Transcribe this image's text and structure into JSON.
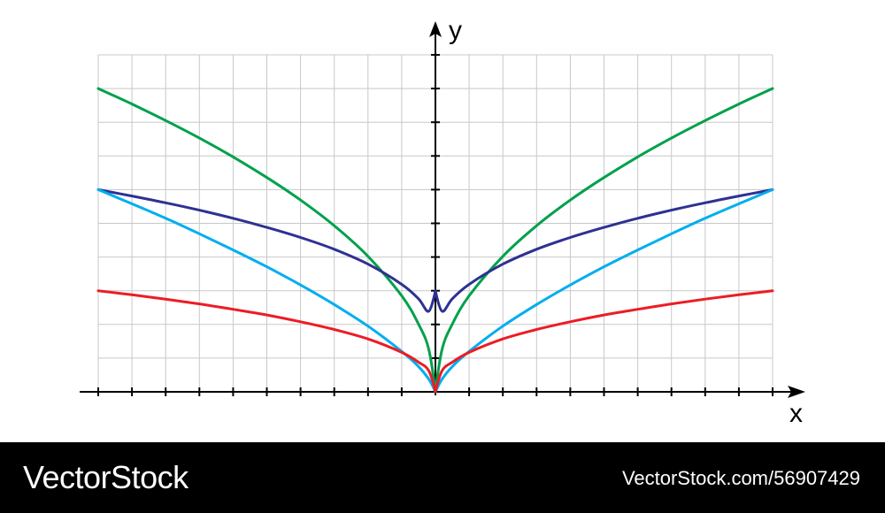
{
  "chart_data": {
    "type": "line",
    "title": "",
    "xlabel": "x",
    "ylabel": "y",
    "xlim": [
      -10,
      10
    ],
    "ylim": [
      0,
      10
    ],
    "grid": true,
    "grid_step": 1,
    "series": [
      {
        "color": "#00a14b",
        "x": [
          -10,
          -9,
          -8,
          -7,
          -6,
          -5,
          -4,
          -3,
          -2,
          -1,
          -0.5,
          -0.2,
          0,
          0.2,
          0.5,
          1,
          2,
          3,
          4,
          5,
          6,
          7,
          8,
          9,
          10
        ],
        "y": [
          9,
          8.54,
          8.05,
          7.53,
          6.97,
          6.36,
          5.69,
          4.93,
          4.02,
          2.85,
          2.01,
          1.27,
          0,
          1.27,
          2.01,
          2.85,
          4.02,
          4.93,
          5.69,
          6.36,
          6.97,
          7.53,
          8.05,
          8.54,
          9
        ]
      },
      {
        "color": "#2e3192",
        "x": [
          -10,
          -9,
          -8,
          -7,
          -6,
          -5,
          -4,
          -3,
          -2,
          -1,
          -0.5,
          -0.2,
          0,
          0.2,
          0.5,
          1,
          2,
          3,
          4,
          5,
          6,
          7,
          8,
          9,
          10
        ],
        "y": [
          6,
          5.81,
          5.61,
          5.39,
          5.15,
          4.88,
          4.58,
          4.23,
          3.79,
          3.19,
          2.76,
          2.39,
          3,
          2.39,
          2.76,
          3.19,
          3.79,
          4.23,
          4.58,
          4.88,
          5.15,
          5.39,
          5.61,
          5.81,
          6
        ]
      },
      {
        "color": "#00aeef",
        "x": [
          -10,
          -9,
          -8,
          -7,
          -6,
          -5,
          -4,
          -3,
          -2,
          -1,
          -0.5,
          -0.2,
          0,
          0.2,
          0.5,
          1,
          2,
          3,
          4,
          5,
          6,
          7,
          8,
          9,
          10
        ],
        "y": [
          6,
          5.58,
          5.15,
          4.69,
          4.21,
          3.71,
          3.17,
          2.59,
          1.95,
          1.2,
          0.75,
          0.38,
          0,
          0.38,
          0.75,
          1.2,
          1.95,
          2.59,
          3.17,
          3.71,
          4.21,
          4.69,
          5.15,
          5.58,
          6
        ]
      },
      {
        "color": "#ed1c24",
        "x": [
          -10,
          -9,
          -8,
          -7,
          -6,
          -5,
          -4,
          -3,
          -2,
          -1,
          -0.5,
          -0.2,
          0,
          0.2,
          0.5,
          1,
          2,
          3,
          4,
          5,
          6,
          7,
          8,
          9,
          10
        ],
        "y": [
          3,
          2.88,
          2.75,
          2.61,
          2.45,
          2.28,
          2.08,
          1.85,
          1.57,
          1.17,
          0.88,
          0.63,
          0,
          0.63,
          0.88,
          1.17,
          1.57,
          1.85,
          2.08,
          2.28,
          2.45,
          2.61,
          2.75,
          2.88,
          3
        ]
      }
    ]
  },
  "footer": {
    "brand": "VectorStock",
    "image_id": "VectorStock.com/56907429"
  },
  "colors": {
    "grid": "#c8c8c8",
    "axis": "#000000",
    "footer_bg": "#000000"
  }
}
